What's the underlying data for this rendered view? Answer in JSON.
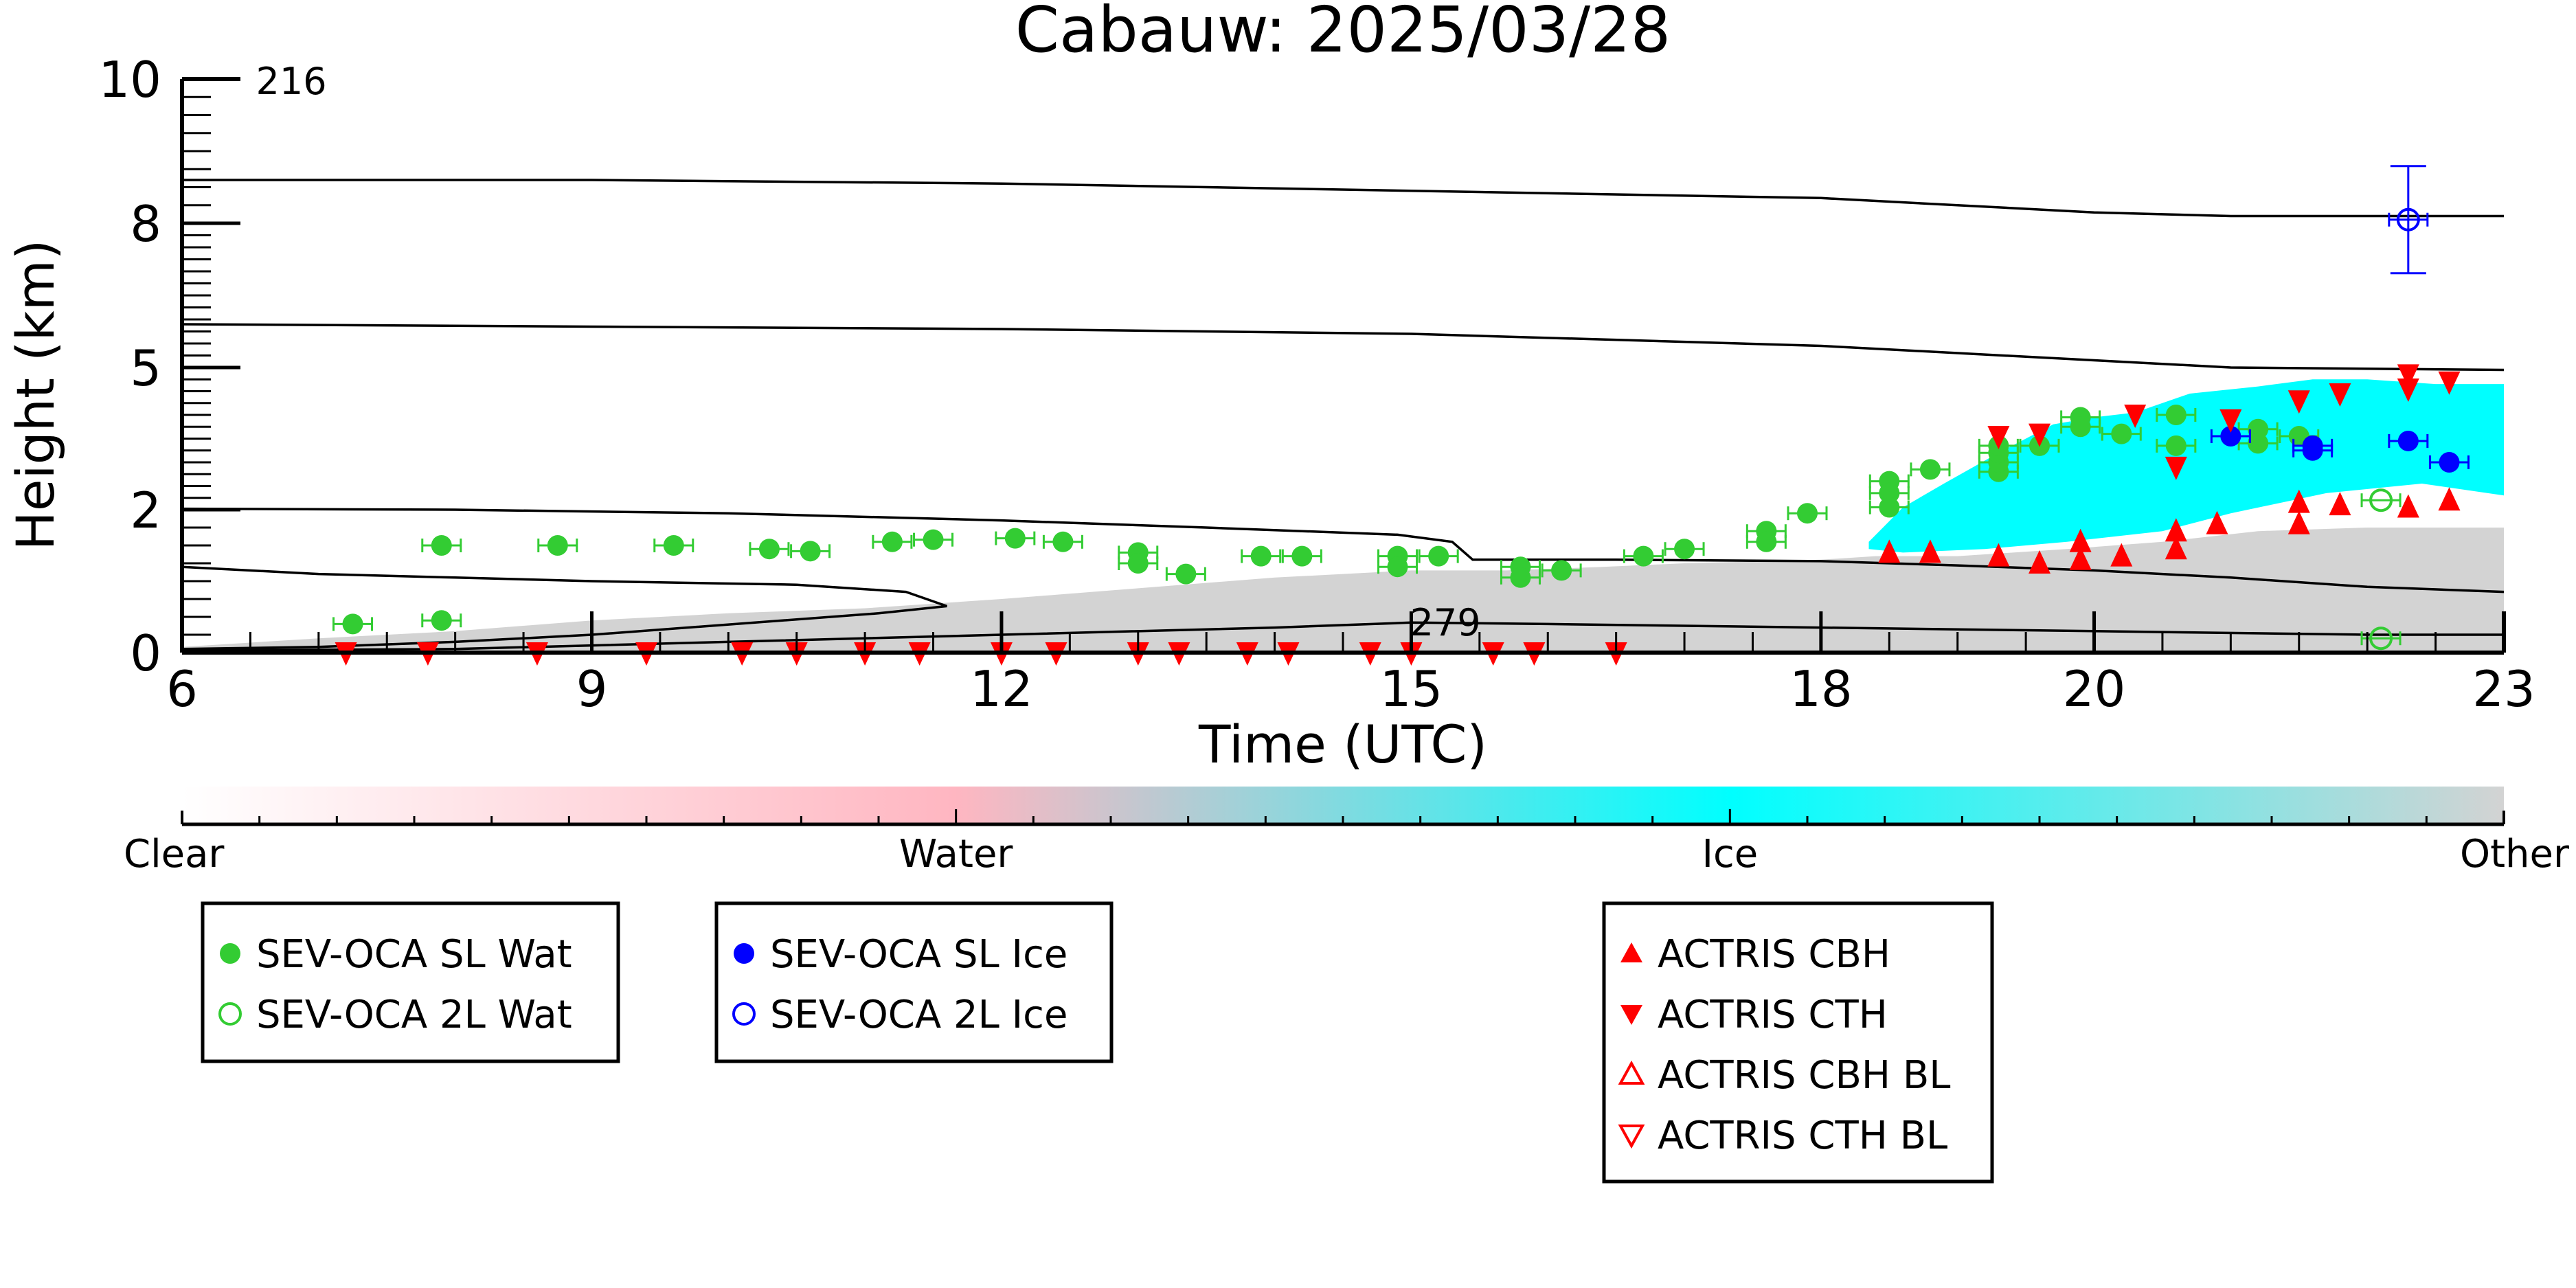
{
  "chart_data": {
    "type": "scatter",
    "title": "Cabauw: 2025/03/28",
    "xlabel": "Time (UTC)",
    "ylabel": "Height (km)",
    "xlim": [
      6,
      23
    ],
    "ylim": [
      0,
      10
    ],
    "y_scale": "custom non-linear (ticks 0, 2, 5, 8, 10 at unequal spacing)",
    "x_ticks": [
      {
        "value": 6,
        "label": "6"
      },
      {
        "value": 9,
        "label": "9"
      },
      {
        "value": 12,
        "label": "12"
      },
      {
        "value": 15,
        "label": "15"
      },
      {
        "value": 18,
        "label": "18"
      },
      {
        "value": 20,
        "label": "20"
      },
      {
        "value": 23,
        "label": "23"
      }
    ],
    "y_ticks": [
      {
        "value": 0,
        "label": "0"
      },
      {
        "value": 2,
        "label": "2"
      },
      {
        "value": 5,
        "label": "5"
      },
      {
        "value": 8,
        "label": "8"
      },
      {
        "value": 10,
        "label": "10"
      }
    ],
    "contour_labels": [
      {
        "x": 6.8,
        "y": 10,
        "text": "216"
      },
      {
        "x": 15.25,
        "y": 0.45,
        "text": "279"
      }
    ],
    "colorbar": {
      "labels": [
        "Clear",
        "Water",
        "Ice",
        "Other"
      ],
      "colors": [
        "#ffffff",
        "#ffb6c1",
        "#00ffff",
        "#d3d3d3"
      ]
    },
    "background": {
      "ice_color": "#00ffff",
      "other_color": "#d3d3d3",
      "ice_region": [
        [
          18.35,
          1.55
        ],
        [
          18.6,
          2.05
        ],
        [
          18.9,
          2.55
        ],
        [
          19.3,
          3.2
        ],
        [
          19.7,
          3.8
        ],
        [
          20.0,
          3.95
        ],
        [
          20.3,
          4.05
        ],
        [
          20.7,
          4.45
        ],
        [
          21.2,
          4.6
        ],
        [
          21.6,
          4.75
        ],
        [
          22.0,
          4.75
        ],
        [
          22.5,
          4.65
        ],
        [
          23.0,
          4.65
        ],
        [
          23.0,
          2.3
        ],
        [
          22.4,
          2.55
        ],
        [
          21.7,
          2.35
        ],
        [
          21.0,
          1.95
        ],
        [
          20.5,
          1.7
        ],
        [
          19.8,
          1.55
        ],
        [
          19.2,
          1.45
        ],
        [
          18.6,
          1.4
        ],
        [
          18.35,
          1.45
        ]
      ],
      "other_region": [
        [
          6.0,
          0.08
        ],
        [
          7.0,
          0.2
        ],
        [
          8.0,
          0.3
        ],
        [
          9.0,
          0.45
        ],
        [
          10.0,
          0.55
        ],
        [
          11.0,
          0.62
        ],
        [
          12.0,
          0.75
        ],
        [
          13.0,
          0.9
        ],
        [
          14.0,
          1.05
        ],
        [
          15.0,
          1.15
        ],
        [
          15.7,
          1.15
        ],
        [
          16.4,
          1.2
        ],
        [
          17.0,
          1.25
        ],
        [
          18.0,
          1.3
        ],
        [
          18.4,
          1.35
        ],
        [
          19.0,
          1.35
        ],
        [
          19.8,
          1.45
        ],
        [
          20.5,
          1.55
        ],
        [
          21.2,
          1.7
        ],
        [
          22.0,
          1.75
        ],
        [
          23.0,
          1.75
        ],
        [
          23.0,
          0.0
        ],
        [
          6.0,
          0.0
        ]
      ]
    },
    "isotherms": [
      {
        "points": [
          [
            6.0,
            8.6
          ],
          [
            9.0,
            8.6
          ],
          [
            12.0,
            8.55
          ],
          [
            15.0,
            8.45
          ],
          [
            18.0,
            8.35
          ],
          [
            20.0,
            8.15
          ],
          [
            21.0,
            8.1
          ],
          [
            23.0,
            8.1
          ]
        ]
      },
      {
        "points": [
          [
            6.0,
            5.9
          ],
          [
            9.0,
            5.85
          ],
          [
            12.0,
            5.8
          ],
          [
            15.0,
            5.7
          ],
          [
            18.0,
            5.45
          ],
          [
            20.0,
            5.15
          ],
          [
            21.0,
            5.0
          ],
          [
            23.0,
            4.95
          ]
        ]
      },
      {
        "points": [
          [
            6.0,
            2.02
          ],
          [
            8.0,
            2.0
          ],
          [
            10.0,
            1.95
          ],
          [
            12.0,
            1.85
          ],
          [
            13.5,
            1.75
          ],
          [
            14.9,
            1.65
          ],
          [
            15.3,
            1.55
          ],
          [
            15.45,
            1.3
          ],
          [
            16.5,
            1.3
          ],
          [
            18.0,
            1.28
          ],
          [
            19.0,
            1.22
          ],
          [
            20.0,
            1.15
          ],
          [
            21.0,
            1.05
          ],
          [
            22.0,
            0.92
          ],
          [
            23.0,
            0.85
          ]
        ]
      },
      {
        "points": [
          [
            6.0,
            1.2
          ],
          [
            7.0,
            1.1
          ],
          [
            8.0,
            1.05
          ],
          [
            9.0,
            1.0
          ],
          [
            10.5,
            0.95
          ],
          [
            11.3,
            0.85
          ],
          [
            11.6,
            0.65
          ],
          [
            11.1,
            0.55
          ],
          [
            9.0,
            0.25
          ],
          [
            8.0,
            0.15
          ],
          [
            7.0,
            0.08
          ],
          [
            6.0,
            0.05
          ]
        ]
      },
      {
        "points": [
          [
            6.0,
            0.03
          ],
          [
            8.0,
            0.05
          ],
          [
            10.0,
            0.15
          ],
          [
            12.0,
            0.25
          ],
          [
            14.0,
            0.35
          ],
          [
            15.0,
            0.42
          ],
          [
            16.0,
            0.4
          ],
          [
            18.0,
            0.35
          ],
          [
            20.0,
            0.3
          ],
          [
            22.0,
            0.25
          ],
          [
            23.0,
            0.25
          ]
        ]
      }
    ],
    "series": [
      {
        "name": "SEV-OCA SL Wat",
        "color": "#33cc33",
        "marker": "filled-circle",
        "points": [
          [
            7.25,
            0.4
          ],
          [
            7.9,
            0.45
          ],
          [
            7.9,
            1.5
          ],
          [
            8.75,
            1.5
          ],
          [
            9.6,
            1.5
          ],
          [
            10.3,
            1.45
          ],
          [
            10.6,
            1.42
          ],
          [
            11.2,
            1.55
          ],
          [
            11.5,
            1.58
          ],
          [
            12.1,
            1.6
          ],
          [
            12.45,
            1.55
          ],
          [
            13.0,
            1.4
          ],
          [
            13.0,
            1.25
          ],
          [
            13.35,
            1.1
          ],
          [
            13.9,
            1.35
          ],
          [
            14.2,
            1.35
          ],
          [
            14.9,
            1.35
          ],
          [
            14.9,
            1.2
          ],
          [
            15.2,
            1.35
          ],
          [
            15.8,
            1.2
          ],
          [
            15.8,
            1.05
          ],
          [
            16.1,
            1.15
          ],
          [
            16.7,
            1.35
          ],
          [
            17.0,
            1.45
          ],
          [
            17.6,
            1.7
          ],
          [
            17.6,
            1.55
          ],
          [
            17.9,
            1.95
          ],
          [
            18.5,
            2.6
          ],
          [
            18.5,
            2.35
          ],
          [
            18.5,
            2.05
          ],
          [
            18.8,
            2.85
          ],
          [
            19.3,
            2.8
          ],
          [
            19.3,
            3.0
          ],
          [
            19.3,
            3.2
          ],
          [
            19.3,
            3.35
          ],
          [
            19.6,
            3.35
          ],
          [
            19.9,
            3.95
          ],
          [
            19.9,
            3.75
          ],
          [
            20.2,
            3.6
          ],
          [
            20.6,
            4.0
          ],
          [
            20.6,
            3.35
          ],
          [
            21.2,
            3.7
          ],
          [
            21.2,
            3.4
          ],
          [
            21.5,
            3.55
          ]
        ]
      },
      {
        "name": "SEV-OCA 2L Wat",
        "color": "#33cc33",
        "marker": "open-circle",
        "points": [
          [
            22.1,
            2.2
          ],
          [
            22.1,
            0.2
          ]
        ]
      },
      {
        "name": "SEV-OCA SL Ice",
        "color": "#0000ff",
        "marker": "filled-circle",
        "points": [
          [
            21.0,
            3.55
          ],
          [
            21.6,
            3.35
          ],
          [
            21.6,
            3.25
          ],
          [
            22.3,
            3.45
          ],
          [
            22.6,
            3.0
          ]
        ]
      },
      {
        "name": "SEV-OCA 2L Ice",
        "color": "#0000ff",
        "marker": "open-circle",
        "points": [
          [
            22.3,
            8.05
          ]
        ]
      },
      {
        "name": "ACTRIS CBH",
        "color": "#ff0000",
        "marker": "triangle-up",
        "points": [
          [
            18.5,
            1.4
          ],
          [
            18.8,
            1.4
          ],
          [
            19.3,
            1.35
          ],
          [
            19.6,
            1.25
          ],
          [
            19.9,
            1.55
          ],
          [
            19.9,
            1.3
          ],
          [
            20.2,
            1.35
          ],
          [
            20.6,
            1.7
          ],
          [
            20.6,
            1.45
          ],
          [
            20.9,
            1.8
          ],
          [
            21.5,
            1.8
          ],
          [
            21.5,
            2.15
          ],
          [
            21.8,
            2.1
          ],
          [
            22.3,
            2.05
          ],
          [
            22.6,
            2.2
          ]
        ]
      },
      {
        "name": "ACTRIS CTH",
        "color": "#ff0000",
        "marker": "triangle-down",
        "points": [
          [
            7.2,
            0.0
          ],
          [
            7.8,
            0.0
          ],
          [
            8.6,
            0.0
          ],
          [
            9.4,
            0.0
          ],
          [
            10.1,
            0.0
          ],
          [
            10.5,
            0.0
          ],
          [
            11.0,
            0.0
          ],
          [
            11.4,
            0.0
          ],
          [
            12.0,
            0.0
          ],
          [
            12.4,
            0.0
          ],
          [
            13.0,
            0.0
          ],
          [
            13.3,
            0.0
          ],
          [
            13.8,
            0.0
          ],
          [
            14.1,
            0.0
          ],
          [
            14.7,
            0.0
          ],
          [
            15.0,
            0.0
          ],
          [
            15.6,
            0.0
          ],
          [
            15.9,
            0.0
          ],
          [
            16.5,
            0.0
          ],
          [
            19.3,
            3.55
          ],
          [
            19.6,
            3.6
          ],
          [
            20.3,
            4.0
          ],
          [
            20.6,
            2.9
          ],
          [
            21.0,
            3.9
          ],
          [
            21.5,
            4.3
          ],
          [
            21.8,
            4.45
          ],
          [
            22.3,
            4.85
          ],
          [
            22.3,
            4.55
          ],
          [
            22.6,
            4.7
          ]
        ]
      },
      {
        "name": "ACTRIS CBH BL",
        "color": "#ff0000",
        "marker": "open-triangle-up",
        "points": []
      },
      {
        "name": "ACTRIS CTH BL",
        "color": "#ff0000",
        "marker": "open-triangle-down",
        "points": []
      }
    ],
    "legends": [
      {
        "entries": [
          0,
          1
        ]
      },
      {
        "entries": [
          2,
          3
        ]
      },
      {
        "entries": [
          4,
          5,
          6,
          7
        ]
      }
    ]
  }
}
